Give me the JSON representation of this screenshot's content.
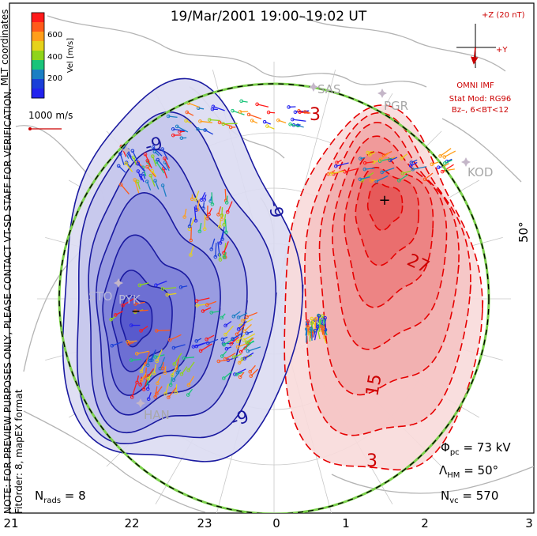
{
  "title": "19/Mar/2001  19:00–19:02  UT",
  "colorbar": {
    "label": "Vel [m/s]",
    "ticks": [
      "600",
      "400",
      "200"
    ],
    "colors": [
      "#ff1a1a",
      "#ff5a1a",
      "#ff9e1a",
      "#e6d21a",
      "#8fd41a",
      "#1ac47a",
      "#1a7fc4",
      "#1a3fd8",
      "#2222ee"
    ]
  },
  "coord_system": "MLT coordinates",
  "velocity_scale": "1000 m/s",
  "notes": {
    "preview": "NOTE: FOR PREVIEW PURPOSES ONLY, PLEASE CONTACT VT-SD STAFF FOR VERIFICATION.",
    "fit": "FitOrder: 8, mapEX format"
  },
  "imf": {
    "z_label": "+Z (20 nT)",
    "y_label": "+Y",
    "source": "OMNI IMF",
    "model": "Stat Mod: RG96",
    "condition": "Bz–, 6<BT<12"
  },
  "stations": [
    "SAS",
    "PGR",
    "KOD",
    "STO",
    "PYK",
    "HAN"
  ],
  "contour_labels": {
    "pos": [
      "3",
      "27",
      "15",
      "3"
    ],
    "neg": [
      "-9",
      "-9",
      "-9"
    ]
  },
  "latitude_label": "50°",
  "stats": {
    "phi_symbol": "Φ",
    "phi_sub": "pc",
    "phi_value": " = 73 kV",
    "lambda_symbol": "Λ",
    "lambda_sub": "HM",
    "lambda_value": " = 50°",
    "nvc_symbol": "N",
    "nvc_sub": "vc",
    "nvc_value": " = 570",
    "nrads_symbol": "N",
    "nrads_sub": "rads",
    "nrads_value": " = 8"
  },
  "mlt_ticks": [
    "21",
    "22",
    "23",
    "0",
    "1",
    "2",
    "3"
  ],
  "colors": {
    "positive": "#e60000",
    "negative": "#1a1aa0",
    "coast": "#b4b4b4"
  }
}
